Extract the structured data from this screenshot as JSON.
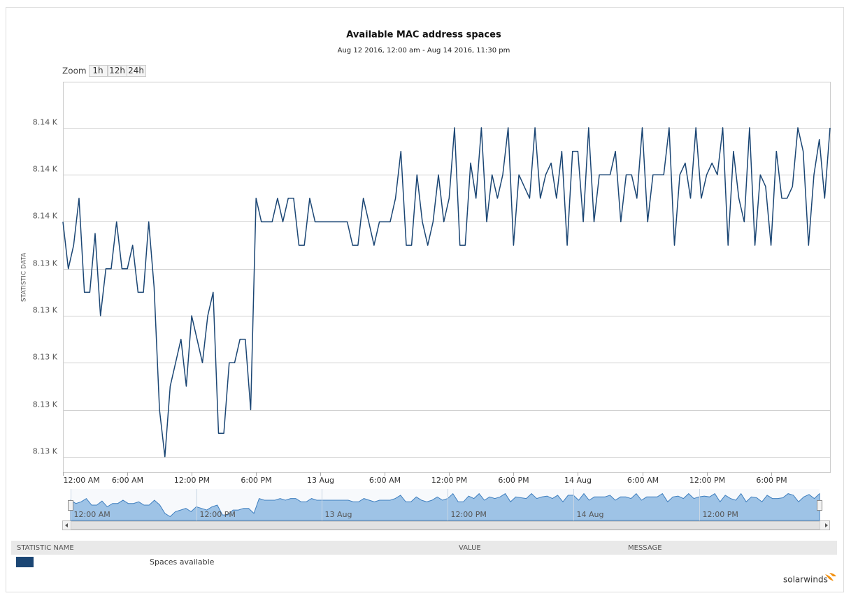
{
  "zoom": {
    "label": "Zoom",
    "buttons": [
      "1h",
      "12h",
      "24h"
    ]
  },
  "chart_data": {
    "type": "line",
    "title": "Available MAC address spaces",
    "subtitle": "Aug 12 2016, 12:00 am - Aug 14 2016, 11:30 pm",
    "ylabel": "STATISTIC DATA",
    "x": [
      0,
      0.5,
      1,
      1.5,
      2,
      2.5,
      3,
      3.5,
      4,
      4.5,
      5,
      5.5,
      6,
      6.5,
      7,
      7.5,
      8,
      8.5,
      9,
      9.5,
      10,
      10.5,
      11,
      11.5,
      12,
      12.5,
      13,
      13.5,
      14,
      14.5,
      15,
      15.5,
      16,
      16.5,
      17,
      17.5,
      18,
      18.5,
      19,
      19.5,
      20,
      20.5,
      21,
      21.5,
      22,
      22.5,
      23,
      23.5,
      24,
      24.5,
      25,
      25.5,
      26,
      26.5,
      27,
      27.5,
      28,
      28.5,
      29,
      29.5,
      30,
      30.5,
      31,
      31.5,
      32,
      32.5,
      33,
      33.5,
      34,
      34.5,
      35,
      35.5,
      36,
      36.5,
      37,
      37.5,
      38,
      38.5,
      39,
      39.5,
      40,
      40.5,
      41,
      41.5,
      42,
      42.5,
      43,
      43.5,
      44,
      44.5,
      45,
      45.5,
      46,
      46.5,
      47,
      47.5,
      48,
      48.5,
      49,
      49.5,
      50,
      50.5,
      51,
      51.5,
      52,
      52.5,
      53,
      53.5,
      54,
      54.5,
      55,
      55.5,
      56,
      56.5,
      57,
      57.5,
      58,
      58.5,
      59,
      59.5,
      60,
      60.5,
      61,
      61.5,
      62,
      62.5,
      63,
      63.5,
      64,
      64.5,
      65,
      65.5,
      66,
      66.5,
      67,
      67.5,
      68,
      68.5,
      69,
      69.5,
      70,
      70.5,
      71,
      71.5
    ],
    "xlim": [
      0,
      71.5
    ],
    "xticks": [
      {
        "value": 0,
        "label": "12:00 AM"
      },
      {
        "value": 6,
        "label": "6:00 AM"
      },
      {
        "value": 12,
        "label": "12:00 PM"
      },
      {
        "value": 18,
        "label": "6:00 PM"
      },
      {
        "value": 24,
        "label": "13 Aug"
      },
      {
        "value": 30,
        "label": "6:00 AM"
      },
      {
        "value": 36,
        "label": "12:00 PM"
      },
      {
        "value": 42,
        "label": "6:00 PM"
      },
      {
        "value": 48,
        "label": "14 Aug"
      },
      {
        "value": 54,
        "label": "6:00 AM"
      },
      {
        "value": 60,
        "label": "12:00 PM"
      },
      {
        "value": 66,
        "label": "6:00 PM"
      }
    ],
    "ylim": [
      8134.67,
      8142.98
    ],
    "yticks": [
      {
        "value": 8135,
        "label": "8.13 K"
      },
      {
        "value": 8136,
        "label": "8.13 K"
      },
      {
        "value": 8137,
        "label": "8.13 K"
      },
      {
        "value": 8138,
        "label": "8.13 K"
      },
      {
        "value": 8139,
        "label": "8.13 K"
      },
      {
        "value": 8140,
        "label": "8.14 K"
      },
      {
        "value": 8141,
        "label": "8.14 K"
      },
      {
        "value": 8142,
        "label": "8.14 K"
      }
    ],
    "grid": true,
    "series": [
      {
        "name": "Spaces available",
        "color": "#1b4674",
        "values": [
          8140,
          8139,
          8139.5,
          8140.5,
          8138.5,
          8138.5,
          8139.75,
          8138,
          8139,
          8139,
          8140,
          8139,
          8139,
          8139.5,
          8138.5,
          8138.5,
          8140,
          8138.6,
          8136,
          8135,
          8136.5,
          8137,
          8137.5,
          8136.5,
          8138,
          8137.5,
          8137,
          8138,
          8138.5,
          8135.5,
          8135.5,
          8137,
          8137,
          8137.5,
          8137.5,
          8136,
          8140.5,
          8140,
          8140,
          8140,
          8140.5,
          8140,
          8140.5,
          8140.5,
          8139.5,
          8139.5,
          8140.5,
          8140,
          8140,
          8140,
          8140,
          8140,
          8140,
          8140,
          8139.5,
          8139.5,
          8140.5,
          8140,
          8139.5,
          8140,
          8140,
          8140,
          8140.5,
          8141.5,
          8139.5,
          8139.5,
          8141,
          8140,
          8139.5,
          8140,
          8141,
          8140,
          8140.5,
          8142,
          8139.5,
          8139.5,
          8141.25,
          8140.5,
          8142,
          8140,
          8141,
          8140.5,
          8141,
          8142,
          8139.5,
          8141,
          8140.75,
          8140.5,
          8142,
          8140.5,
          8141,
          8141.25,
          8140.5,
          8141.5,
          8139.5,
          8141.5,
          8141.5,
          8140,
          8142,
          8140,
          8141,
          8141,
          8141,
          8141.5,
          8140,
          8141,
          8141,
          8140.5,
          8142,
          8140,
          8141,
          8141,
          8141,
          8142,
          8139.5,
          8141,
          8141.25,
          8140.5,
          8142,
          8140.5,
          8141,
          8141.25,
          8141,
          8142,
          8139.5,
          8141.5,
          8140.5,
          8140,
          8142,
          8139.5,
          8141,
          8140.75,
          8139.5,
          8141.5,
          8140.5,
          8140.5,
          8140.75,
          8142,
          8141.5,
          8139.5,
          8141,
          8141.75,
          8140.5,
          8142
        ]
      }
    ],
    "navigator": {
      "xticks": [
        {
          "value": 0,
          "label": "12:00 AM"
        },
        {
          "value": 12,
          "label": "12:00 PM"
        },
        {
          "value": 24,
          "label": "13 Aug"
        },
        {
          "value": 36,
          "label": "12:00 PM"
        },
        {
          "value": 48,
          "label": "14 Aug"
        },
        {
          "value": 60,
          "label": "12:00 PM"
        }
      ]
    }
  },
  "table": {
    "headers": [
      "STATISTIC NAME",
      "VALUE",
      "MESSAGE"
    ]
  },
  "brand": "solarwinds"
}
